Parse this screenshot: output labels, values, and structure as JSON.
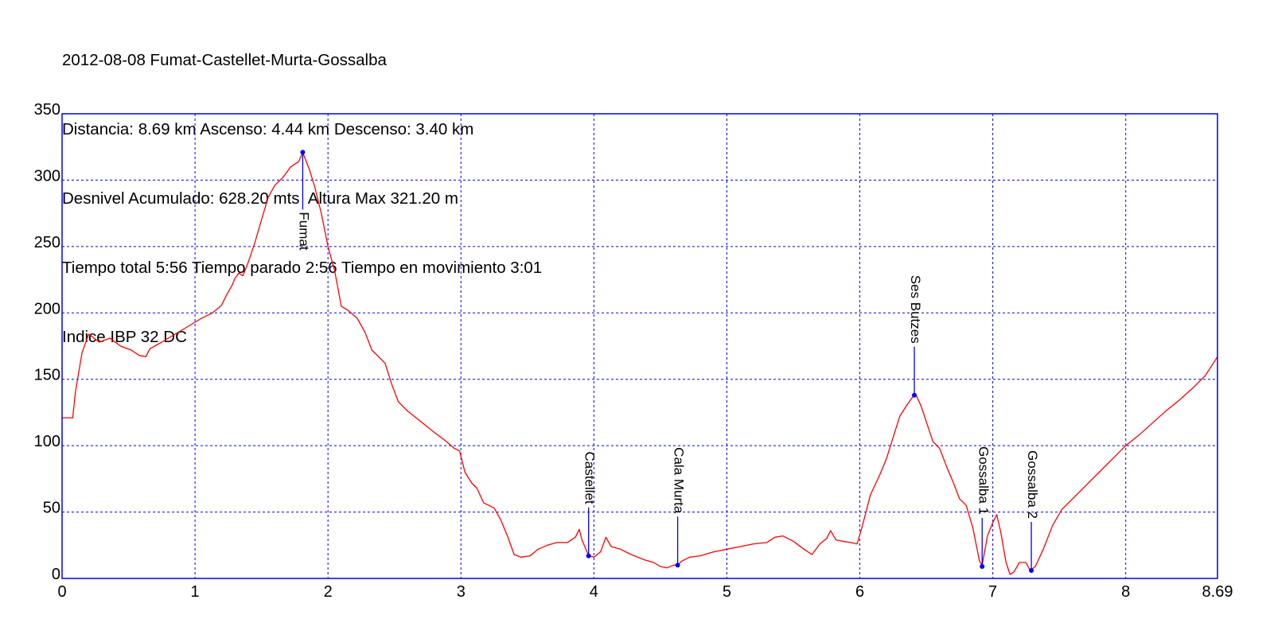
{
  "header": {
    "title": "2012-08-08 Fumat-Castellet-Murta-Gossalba",
    "line2": "Distancia: 8.69 km Ascenso: 4.44 km Descenso: 3.40 km",
    "line3": "Desnivel Acumulado: 628.20 mts  Altura Max 321.20 m",
    "line4": "Tiempo total 5:56 Tiempo parado 2:56 Tiempo en movimiento 3:01",
    "line5": "Indice IBP 32 DC"
  },
  "colors": {
    "profile": "#ff0000",
    "grid": "#0000ff",
    "frame": "#0000ff",
    "waypoint": "#0000ff",
    "text": "#000000"
  },
  "chart_data": {
    "type": "line",
    "title": "2012-08-08 Fumat-Castellet-Murta-Gossalba",
    "xlabel": "",
    "ylabel": "",
    "xlim": [
      0,
      8.69
    ],
    "ylim": [
      0,
      350
    ],
    "x_ticks": [
      "0",
      "1",
      "2",
      "3",
      "4",
      "5",
      "6",
      "7",
      "8",
      "8.69"
    ],
    "x_tick_values": [
      0,
      1,
      2,
      3,
      4,
      5,
      6,
      7,
      8,
      8.69
    ],
    "y_ticks": [
      "0",
      "50",
      "100",
      "150",
      "200",
      "250",
      "300",
      "350"
    ],
    "y_tick_values": [
      0,
      50,
      100,
      150,
      200,
      250,
      300,
      350
    ],
    "grid": true,
    "series": [
      {
        "color": "#ff0000",
        "points": [
          [
            0.0,
            121
          ],
          [
            0.08,
            121
          ],
          [
            0.1,
            140
          ],
          [
            0.15,
            170
          ],
          [
            0.2,
            184
          ],
          [
            0.28,
            178
          ],
          [
            0.36,
            181
          ],
          [
            0.44,
            175
          ],
          [
            0.52,
            172
          ],
          [
            0.58,
            168
          ],
          [
            0.63,
            167
          ],
          [
            0.66,
            173
          ],
          [
            0.75,
            178
          ],
          [
            0.85,
            184
          ],
          [
            0.95,
            190
          ],
          [
            1.05,
            196
          ],
          [
            1.13,
            200
          ],
          [
            1.18,
            204
          ],
          [
            1.2,
            206
          ],
          [
            1.24,
            214
          ],
          [
            1.28,
            221
          ],
          [
            1.3,
            226
          ],
          [
            1.33,
            230
          ],
          [
            1.36,
            228
          ],
          [
            1.4,
            238
          ],
          [
            1.45,
            253
          ],
          [
            1.5,
            270
          ],
          [
            1.55,
            287
          ],
          [
            1.6,
            296
          ],
          [
            1.66,
            302
          ],
          [
            1.72,
            310
          ],
          [
            1.78,
            314
          ],
          [
            1.81,
            321
          ],
          [
            1.86,
            308
          ],
          [
            1.9,
            295
          ],
          [
            1.95,
            275
          ],
          [
            2.0,
            250
          ],
          [
            2.05,
            232
          ],
          [
            2.1,
            205
          ],
          [
            2.15,
            202
          ],
          [
            2.22,
            196
          ],
          [
            2.28,
            185
          ],
          [
            2.33,
            172
          ],
          [
            2.38,
            167
          ],
          [
            2.43,
            162
          ],
          [
            2.48,
            146
          ],
          [
            2.53,
            133
          ],
          [
            2.6,
            126
          ],
          [
            2.7,
            118
          ],
          [
            2.8,
            110
          ],
          [
            2.88,
            104
          ],
          [
            2.95,
            98
          ],
          [
            2.99,
            96
          ],
          [
            3.03,
            80
          ],
          [
            3.08,
            72
          ],
          [
            3.12,
            68
          ],
          [
            3.17,
            57
          ],
          [
            3.25,
            53
          ],
          [
            3.3,
            44
          ],
          [
            3.35,
            32
          ],
          [
            3.4,
            18
          ],
          [
            3.45,
            16
          ],
          [
            3.52,
            17
          ],
          [
            3.58,
            22
          ],
          [
            3.65,
            25
          ],
          [
            3.72,
            27
          ],
          [
            3.8,
            27
          ],
          [
            3.86,
            31
          ],
          [
            3.89,
            37
          ],
          [
            3.91,
            29
          ],
          [
            3.94,
            22
          ],
          [
            3.96,
            17
          ],
          [
            4.0,
            16
          ],
          [
            4.05,
            20
          ],
          [
            4.09,
            31
          ],
          [
            4.13,
            24
          ],
          [
            4.2,
            22
          ],
          [
            4.28,
            18
          ],
          [
            4.38,
            14
          ],
          [
            4.45,
            12
          ],
          [
            4.5,
            9
          ],
          [
            4.55,
            8
          ],
          [
            4.6,
            10
          ],
          [
            4.63,
            10
          ],
          [
            4.66,
            13
          ],
          [
            4.72,
            16
          ],
          [
            4.8,
            17
          ],
          [
            4.9,
            20
          ],
          [
            5.0,
            22
          ],
          [
            5.1,
            24
          ],
          [
            5.2,
            26
          ],
          [
            5.3,
            27
          ],
          [
            5.36,
            31
          ],
          [
            5.42,
            32
          ],
          [
            5.5,
            28
          ],
          [
            5.58,
            22
          ],
          [
            5.64,
            18
          ],
          [
            5.7,
            26
          ],
          [
            5.75,
            30
          ],
          [
            5.78,
            36
          ],
          [
            5.82,
            29
          ],
          [
            5.87,
            28
          ],
          [
            5.93,
            27
          ],
          [
            5.98,
            26
          ],
          [
            6.02,
            40
          ],
          [
            6.08,
            63
          ],
          [
            6.15,
            78
          ],
          [
            6.2,
            90
          ],
          [
            6.25,
            106
          ],
          [
            6.3,
            122
          ],
          [
            6.35,
            130
          ],
          [
            6.4,
            137
          ],
          [
            6.42,
            139
          ],
          [
            6.46,
            130
          ],
          [
            6.5,
            118
          ],
          [
            6.55,
            103
          ],
          [
            6.6,
            98
          ],
          [
            6.65,
            85
          ],
          [
            6.7,
            73
          ],
          [
            6.75,
            60
          ],
          [
            6.8,
            55
          ],
          [
            6.85,
            38
          ],
          [
            6.9,
            13
          ],
          [
            6.92,
            10
          ],
          [
            6.96,
            32
          ],
          [
            7.0,
            42
          ],
          [
            7.03,
            48
          ],
          [
            7.06,
            35
          ],
          [
            7.1,
            12
          ],
          [
            7.13,
            3
          ],
          [
            7.16,
            5
          ],
          [
            7.2,
            12
          ],
          [
            7.25,
            12
          ],
          [
            7.28,
            6
          ],
          [
            7.32,
            9
          ],
          [
            7.38,
            22
          ],
          [
            7.45,
            40
          ],
          [
            7.52,
            52
          ],
          [
            7.6,
            60
          ],
          [
            7.7,
            70
          ],
          [
            7.8,
            80
          ],
          [
            7.9,
            90
          ],
          [
            8.0,
            100
          ],
          [
            8.1,
            108
          ],
          [
            8.2,
            117
          ],
          [
            8.3,
            126
          ],
          [
            8.4,
            134
          ],
          [
            8.5,
            143
          ],
          [
            8.6,
            153
          ],
          [
            8.69,
            167
          ]
        ]
      }
    ],
    "waypoints": [
      {
        "label": "Fumat",
        "x": 1.81,
        "y": 321
      },
      {
        "label": "Castellet",
        "x": 3.96,
        "y": 17
      },
      {
        "label": "Cala Murta",
        "x": 4.63,
        "y": 10
      },
      {
        "label": "Ses Butzes",
        "x": 6.41,
        "y": 138
      },
      {
        "label": "Gossalba 1",
        "x": 6.92,
        "y": 9
      },
      {
        "label": "Gossalba 2",
        "x": 7.29,
        "y": 6
      }
    ]
  }
}
